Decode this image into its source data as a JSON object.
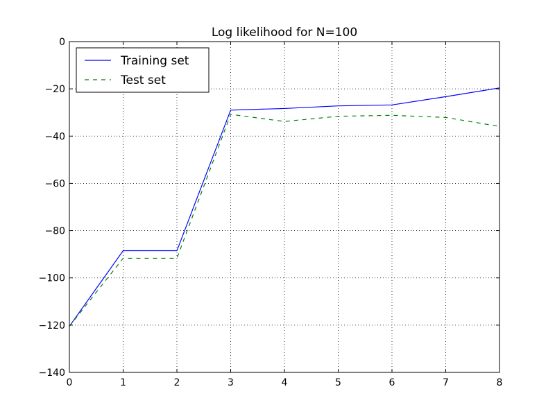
{
  "chart_data": {
    "type": "line",
    "title": "Log likelihood for N=100",
    "xlabel": "",
    "ylabel": "",
    "xlim": [
      0,
      8
    ],
    "ylim": [
      -140,
      0
    ],
    "xticks": [
      0,
      1,
      2,
      3,
      4,
      5,
      6,
      7,
      8
    ],
    "yticks": [
      0,
      -20,
      -40,
      -60,
      -80,
      -100,
      -120,
      -140
    ],
    "xtick_labels": [
      "0",
      "1",
      "2",
      "3",
      "4",
      "5",
      "6",
      "7",
      "8"
    ],
    "ytick_labels": [
      "0",
      "−20",
      "−40",
      "−60",
      "−80",
      "−100",
      "−120",
      "−140"
    ],
    "grid": true,
    "legend_position": "top-left",
    "x": [
      0,
      1,
      2,
      3,
      4,
      5,
      6,
      7,
      8
    ],
    "series": [
      {
        "name": "Training set",
        "color": "#0000ff",
        "style": "solid",
        "values": [
          -120.5,
          -88.5,
          -88.5,
          -29.0,
          -28.3,
          -27.2,
          -26.8,
          -23.3,
          -19.6
        ]
      },
      {
        "name": "Test set",
        "color": "#008000",
        "style": "dashed",
        "values": [
          -120.5,
          -91.7,
          -91.7,
          -30.8,
          -33.8,
          -31.6,
          -31.2,
          -32.1,
          -35.9
        ]
      }
    ]
  }
}
